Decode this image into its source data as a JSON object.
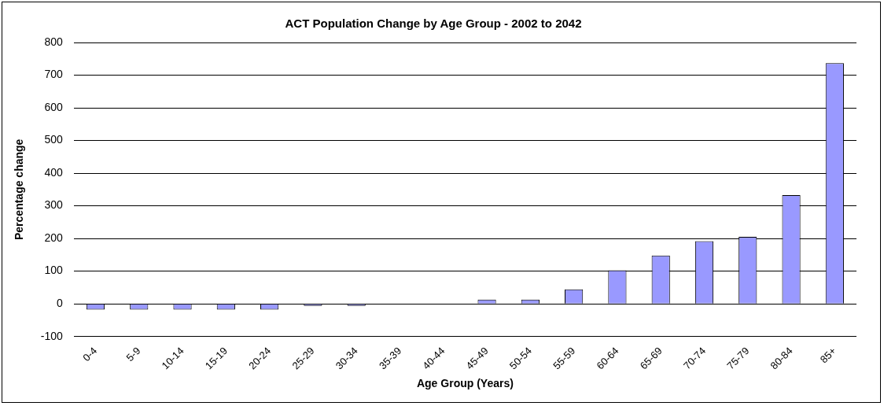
{
  "chart_data": {
    "type": "bar",
    "title": "ACT Population Change by Age Group - 2002 to 2042",
    "xlabel": "Age Group (Years)",
    "ylabel": "Percentage change",
    "categories": [
      "0-4",
      "5-9",
      "10-14",
      "15-19",
      "20-24",
      "25-29",
      "30-34",
      "35-39",
      "40-44",
      "45-49",
      "50-54",
      "55-59",
      "60-64",
      "65-69",
      "70-74",
      "75-79",
      "80-84",
      "85+"
    ],
    "values": [
      -18,
      -18,
      -18,
      -18,
      -18,
      -6,
      -6,
      0,
      0,
      13,
      13,
      44,
      103,
      148,
      192,
      205,
      333,
      737
    ],
    "color": "#9999ff",
    "ylim": [
      -100,
      800
    ],
    "yticks": [
      -100,
      0,
      100,
      200,
      300,
      400,
      500,
      600,
      700,
      800
    ],
    "grid": "y",
    "legend": false
  }
}
